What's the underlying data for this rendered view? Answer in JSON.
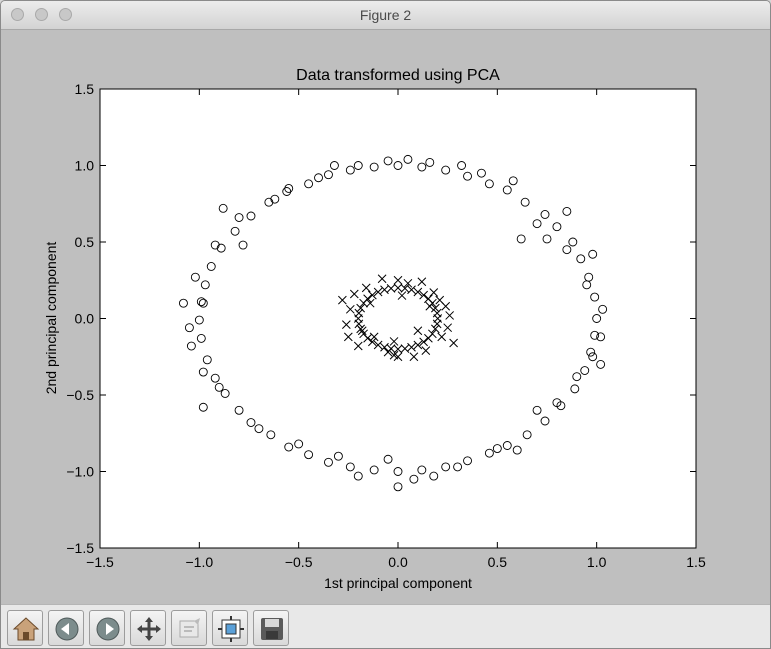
{
  "window": {
    "title": "Figure 2"
  },
  "toolbar": {
    "buttons": [
      {
        "icon": "home-icon"
      },
      {
        "icon": "back-icon"
      },
      {
        "icon": "forward-icon"
      },
      {
        "icon": "pan-icon"
      },
      {
        "icon": "zoom-icon"
      },
      {
        "icon": "subplots-icon"
      },
      {
        "icon": "save-icon"
      }
    ]
  },
  "chart_data": {
    "type": "scatter",
    "title": "Data transformed using PCA",
    "xlabel": "1st principal component",
    "ylabel": "2nd principal component",
    "xlim": [
      -1.5,
      1.5
    ],
    "ylim": [
      -1.5,
      1.5
    ],
    "xticks": [
      "−1.5",
      "−1.0",
      "−0.5",
      "0.0",
      "0.5",
      "1.0",
      "1.5"
    ],
    "yticks": [
      "−1.5",
      "−1.0",
      "−0.5",
      "0.0",
      "0.5",
      "1.0",
      "1.5"
    ],
    "grid": false,
    "series": [
      {
        "marker": "o",
        "color": "#000000",
        "points": [
          [
            1.0,
            0.0
          ],
          [
            0.99,
            0.14
          ],
          [
            0.96,
            0.27
          ],
          [
            0.92,
            0.39
          ],
          [
            0.88,
            0.5
          ],
          [
            0.8,
            0.6
          ],
          [
            0.74,
            0.68
          ],
          [
            0.64,
            0.76
          ],
          [
            0.55,
            0.84
          ],
          [
            0.46,
            0.88
          ],
          [
            0.35,
            0.93
          ],
          [
            0.24,
            0.97
          ],
          [
            0.12,
            0.99
          ],
          [
            0.0,
            1.0
          ],
          [
            -0.12,
            0.99
          ],
          [
            -0.24,
            0.97
          ],
          [
            -0.35,
            0.94
          ],
          [
            -0.45,
            0.88
          ],
          [
            -0.56,
            0.83
          ],
          [
            -0.65,
            0.76
          ],
          [
            -0.74,
            0.67
          ],
          [
            -0.82,
            0.57
          ],
          [
            -0.89,
            0.46
          ],
          [
            -0.94,
            0.34
          ],
          [
            -0.97,
            0.22
          ],
          [
            -0.99,
            0.11
          ],
          [
            -1.0,
            -0.01
          ],
          [
            -0.99,
            -0.13
          ],
          [
            -0.96,
            -0.27
          ],
          [
            -0.92,
            -0.39
          ],
          [
            -0.87,
            -0.49
          ],
          [
            -0.8,
            -0.6
          ],
          [
            -0.74,
            -0.68
          ],
          [
            -0.64,
            -0.76
          ],
          [
            -0.55,
            -0.84
          ],
          [
            -0.45,
            -0.89
          ],
          [
            -0.35,
            -0.94
          ],
          [
            -0.24,
            -0.97
          ],
          [
            -0.12,
            -0.99
          ],
          [
            0.0,
            -1.0
          ],
          [
            0.12,
            -0.99
          ],
          [
            0.24,
            -0.97
          ],
          [
            0.35,
            -0.93
          ],
          [
            0.46,
            -0.88
          ],
          [
            0.55,
            -0.83
          ],
          [
            0.65,
            -0.76
          ],
          [
            0.74,
            -0.67
          ],
          [
            0.82,
            -0.57
          ],
          [
            0.89,
            -0.46
          ],
          [
            0.94,
            -0.34
          ],
          [
            0.97,
            -0.22
          ],
          [
            0.99,
            -0.11
          ],
          [
            1.03,
            0.06
          ],
          [
            1.02,
            -0.12
          ],
          [
            0.95,
            0.22
          ],
          [
            0.85,
            0.45
          ],
          [
            0.7,
            0.62
          ],
          [
            0.58,
            0.9
          ],
          [
            0.42,
            0.95
          ],
          [
            0.16,
            1.02
          ],
          [
            -0.05,
            1.03
          ],
          [
            -0.2,
            1.0
          ],
          [
            -0.4,
            0.92
          ],
          [
            -0.62,
            0.78
          ],
          [
            -0.8,
            0.66
          ],
          [
            -0.92,
            0.48
          ],
          [
            -1.02,
            0.27
          ],
          [
            -1.08,
            0.1
          ],
          [
            -1.04,
            -0.18
          ],
          [
            -0.98,
            -0.35
          ],
          [
            -0.9,
            -0.45
          ],
          [
            -0.98,
            -0.58
          ],
          [
            -0.7,
            -0.72
          ],
          [
            -0.5,
            -0.82
          ],
          [
            -0.3,
            -0.9
          ],
          [
            -0.2,
            -1.03
          ],
          [
            -0.05,
            -0.92
          ],
          [
            0.08,
            -1.05
          ],
          [
            0.18,
            -1.03
          ],
          [
            0.3,
            -0.97
          ],
          [
            0.5,
            -0.85
          ],
          [
            0.6,
            -0.86
          ],
          [
            0.7,
            -0.6
          ],
          [
            0.8,
            -0.55
          ],
          [
            0.9,
            -0.38
          ],
          [
            0.98,
            -0.25
          ],
          [
            1.02,
            -0.3
          ],
          [
            0.98,
            0.42
          ],
          [
            0.85,
            0.7
          ],
          [
            0.62,
            0.52
          ],
          [
            -0.55,
            0.85
          ],
          [
            -0.78,
            0.48
          ],
          [
            -0.88,
            0.72
          ],
          [
            -0.98,
            0.1
          ],
          [
            -1.05,
            -0.06
          ],
          [
            0.0,
            -1.1
          ],
          [
            0.05,
            1.04
          ],
          [
            -0.32,
            1.0
          ],
          [
            0.32,
            1.0
          ],
          [
            0.75,
            0.52
          ]
        ]
      },
      {
        "marker": "x",
        "color": "#000000",
        "points": [
          [
            0.2,
            0.0
          ],
          [
            0.197,
            0.035
          ],
          [
            0.188,
            0.068
          ],
          [
            0.173,
            0.1
          ],
          [
            0.153,
            0.129
          ],
          [
            0.129,
            0.153
          ],
          [
            0.1,
            0.173
          ],
          [
            0.068,
            0.188
          ],
          [
            0.035,
            0.197
          ],
          [
            0.0,
            0.2
          ],
          [
            -0.035,
            0.197
          ],
          [
            -0.068,
            0.188
          ],
          [
            -0.1,
            0.173
          ],
          [
            -0.129,
            0.153
          ],
          [
            -0.153,
            0.129
          ],
          [
            -0.173,
            0.1
          ],
          [
            -0.188,
            0.068
          ],
          [
            -0.197,
            0.035
          ],
          [
            -0.2,
            0.0
          ],
          [
            -0.197,
            -0.035
          ],
          [
            -0.188,
            -0.068
          ],
          [
            -0.173,
            -0.1
          ],
          [
            -0.153,
            -0.129
          ],
          [
            -0.129,
            -0.153
          ],
          [
            -0.1,
            -0.173
          ],
          [
            -0.068,
            -0.188
          ],
          [
            -0.035,
            -0.197
          ],
          [
            0.0,
            -0.2
          ],
          [
            0.035,
            -0.197
          ],
          [
            0.068,
            -0.188
          ],
          [
            0.1,
            -0.173
          ],
          [
            0.129,
            -0.153
          ],
          [
            0.153,
            -0.129
          ],
          [
            0.173,
            -0.1
          ],
          [
            0.188,
            -0.068
          ],
          [
            0.197,
            -0.035
          ],
          [
            0.24,
            0.08
          ],
          [
            0.22,
            -0.12
          ],
          [
            0.12,
            0.24
          ],
          [
            -0.08,
            0.26
          ],
          [
            -0.22,
            0.16
          ],
          [
            -0.26,
            -0.04
          ],
          [
            -0.2,
            -0.18
          ],
          [
            -0.02,
            -0.24
          ],
          [
            0.14,
            -0.21
          ],
          [
            0.26,
            0.02
          ],
          [
            0.16,
            0.08
          ],
          [
            0.1,
            -0.08
          ],
          [
            -0.14,
            0.1
          ],
          [
            -0.12,
            -0.12
          ],
          [
            0.02,
            0.15
          ],
          [
            -0.02,
            -0.15
          ],
          [
            0.25,
            -0.06
          ],
          [
            -0.24,
            0.06
          ],
          [
            0.05,
            0.23
          ],
          [
            -0.05,
            -0.22
          ],
          [
            0.18,
            0.17
          ],
          [
            -0.18,
            -0.08
          ],
          [
            0.21,
            0.12
          ],
          [
            -0.16,
            0.2
          ],
          [
            0.08,
            -0.25
          ],
          [
            -0.25,
            -0.12
          ],
          [
            0.28,
            -0.16
          ],
          [
            -0.28,
            0.12
          ],
          [
            0.0,
            0.25
          ],
          [
            0.0,
            -0.25
          ]
        ]
      }
    ]
  }
}
